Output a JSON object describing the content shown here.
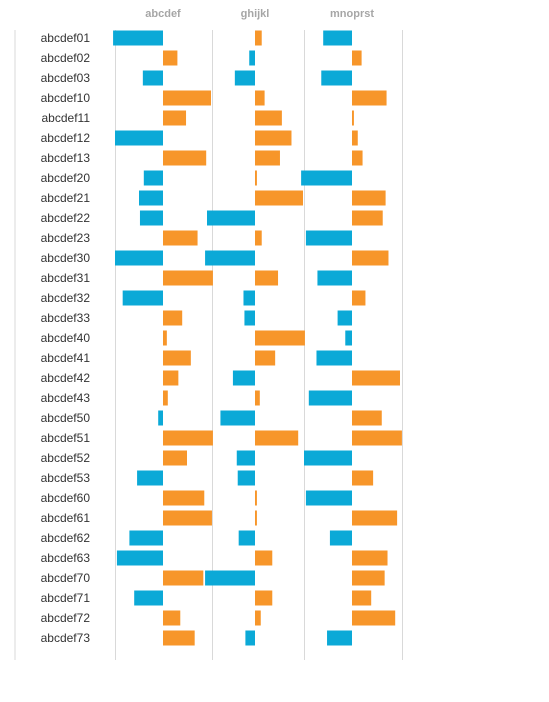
{
  "chart_data": {
    "type": "bar",
    "layout": "small-multiples-diverging-horizontal",
    "grid": true,
    "colors": {
      "positive": "#f7962a",
      "negative": "#0ba9d7",
      "grid": "#d9d9d9",
      "label": "#333333",
      "title": "#a6a6a6"
    },
    "categories": [
      "abcdef01",
      "abcdef02",
      "abcdef03",
      "abcdef10",
      "abcdef11",
      "abcdef12",
      "abcdef13",
      "abcdef20",
      "abcdef21",
      "abcdef22",
      "abcdef23",
      "abcdef30",
      "abcdef31",
      "abcdef32",
      "abcdef33",
      "abcdef40",
      "abcdef41",
      "abcdef42",
      "abcdef43",
      "abcdef50",
      "abcdef51",
      "abcdef52",
      "abcdef53",
      "abcdef60",
      "abcdef61",
      "abcdef62",
      "abcdef63",
      "abcdef70",
      "abcdef71",
      "abcdef72",
      "abcdef73"
    ],
    "series": [
      {
        "name": "abcdef",
        "xlim": [
          -1,
          1
        ],
        "values": [
          -1.04,
          0.3,
          -0.42,
          1.0,
          0.48,
          -1.0,
          0.9,
          -0.4,
          -0.5,
          -0.48,
          0.72,
          -1.0,
          1.04,
          -0.84,
          0.4,
          0.08,
          0.58,
          0.32,
          0.1,
          -0.1,
          1.04,
          0.5,
          -0.54,
          0.86,
          1.02,
          -0.7,
          -0.96,
          0.84,
          -0.6,
          0.36,
          0.66
        ]
      },
      {
        "name": "ghijkl",
        "xlim": [
          -1,
          1
        ],
        "values": [
          0.14,
          -0.12,
          -0.42,
          0.2,
          0.56,
          0.76,
          0.52,
          0.04,
          1.0,
          -1.0,
          0.14,
          -1.04,
          0.48,
          -0.24,
          -0.22,
          1.04,
          0.42,
          -0.46,
          0.1,
          -0.72,
          0.9,
          -0.38,
          -0.36,
          0.04,
          0.04,
          -0.34,
          0.36,
          -1.04,
          0.36,
          0.12,
          -0.2
        ]
      },
      {
        "name": "mnoprst",
        "xlim": [
          -1,
          1
        ],
        "values": [
          -0.6,
          0.2,
          -0.64,
          0.72,
          0.04,
          0.12,
          0.22,
          -1.06,
          0.7,
          0.64,
          -0.96,
          0.76,
          -0.72,
          0.28,
          -0.3,
          -0.14,
          -0.74,
          1.0,
          -0.9,
          0.62,
          1.04,
          -1.0,
          0.44,
          -0.96,
          0.94,
          -0.46,
          0.74,
          0.68,
          0.4,
          0.9,
          -0.52
        ]
      }
    ]
  }
}
